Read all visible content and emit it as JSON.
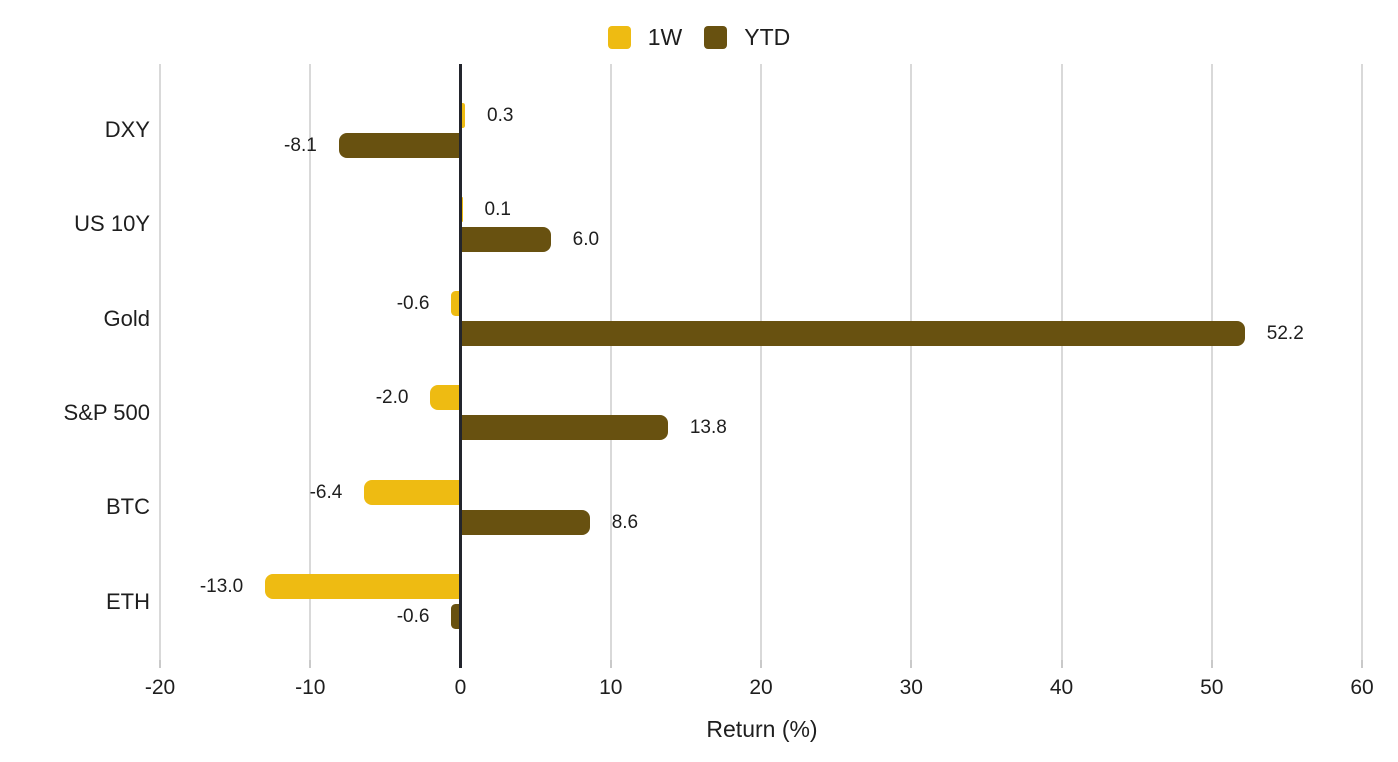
{
  "chart_data": {
    "type": "bar",
    "orientation": "horizontal",
    "title": "",
    "xlabel": "Return (%)",
    "categories": [
      "DXY",
      "US 10Y",
      "Gold",
      "S&P 500",
      "BTC",
      "ETH"
    ],
    "series": [
      {
        "name": "1W",
        "color": "#EEBB12",
        "values": [
          0.3,
          0.1,
          -0.6,
          -2.0,
          -6.4,
          -13.0
        ],
        "labels": [
          "0.3",
          "0.1",
          "-0.6",
          "-2.0",
          "-6.4",
          "-13.0"
        ]
      },
      {
        "name": "YTD",
        "color": "#685110",
        "values": [
          -8.1,
          6.0,
          52.2,
          13.8,
          8.6,
          -0.6
        ],
        "labels": [
          "-8.1",
          "6.0",
          "52.2",
          "13.8",
          "8.6",
          "-0.6"
        ]
      }
    ],
    "xlim": [
      -20,
      60
    ],
    "xticks": [
      -20,
      -10,
      0,
      10,
      20,
      30,
      40,
      50,
      60
    ],
    "xtick_labels": [
      "-20",
      "-10",
      "0",
      "10",
      "20",
      "30",
      "40",
      "50",
      "60"
    ],
    "legend_position": "top",
    "grid": true,
    "colors": {
      "grid": "#d9d9d9",
      "zero_line": "#23252d",
      "tick": "#c9c9c9",
      "text": "#1e1e1e"
    }
  }
}
